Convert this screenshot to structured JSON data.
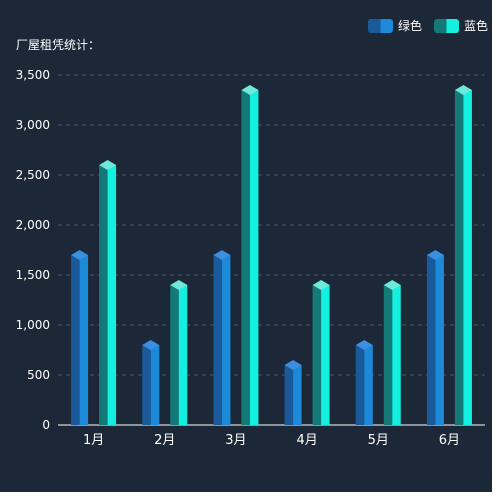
{
  "chart_data": {
    "type": "bar",
    "unit_label": "厂屋租凭统计：",
    "categories": [
      "1月",
      "2月",
      "3月",
      "4月",
      "5月",
      "6月"
    ],
    "series": [
      {
        "name": "绿色",
        "values": [
          1700,
          800,
          1700,
          600,
          800,
          1700
        ],
        "color_dark": "#1a5a9a",
        "color_light": "#1c8ad8",
        "color_top": "#3c8ee0"
      },
      {
        "name": "蓝色",
        "values": [
          2600,
          1400,
          3350,
          1400,
          1400,
          3350
        ],
        "color_dark": "#147a78",
        "color_light": "#14f0e0",
        "color_top": "#6ee8d8"
      }
    ],
    "yticks": [
      0,
      500,
      1000,
      1500,
      2000,
      2500,
      3000,
      3500
    ],
    "ytick_labels": [
      "0",
      "500",
      "1,000",
      "1,500",
      "2,000",
      "2,500",
      "3,000",
      "3,500"
    ],
    "ylim": [
      0,
      3500
    ],
    "grid": true,
    "legend_position": "top-right"
  }
}
